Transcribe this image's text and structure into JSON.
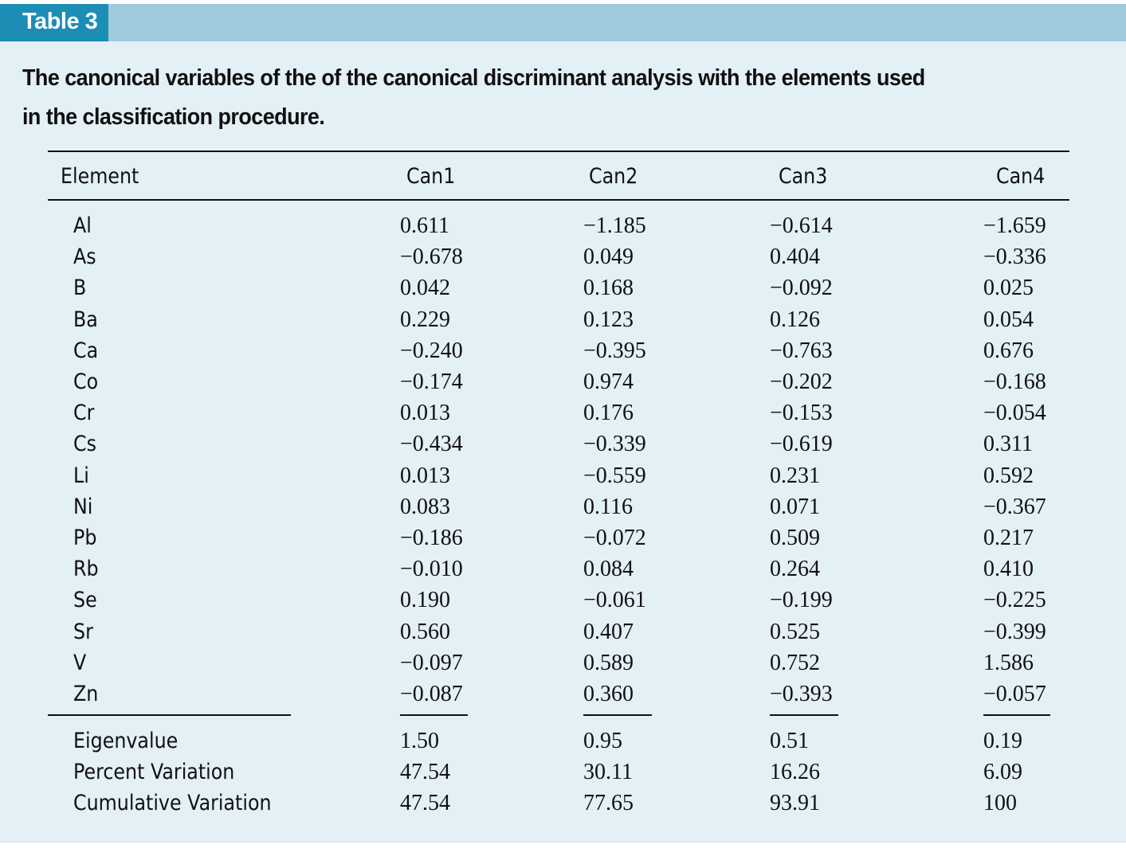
{
  "header": {
    "label": "Table 3"
  },
  "caption": "The canonical variables of the of the canonical discriminant analysis with the elements used in the classification procedure.",
  "table": {
    "columns": [
      "Element",
      "Can1",
      "Can2",
      "Can3",
      "Can4"
    ],
    "rows": [
      [
        "Al",
        "0.611",
        "−1.185",
        "−0.614",
        "−1.659"
      ],
      [
        "As",
        "−0.678",
        "0.049",
        "0.404",
        "−0.336"
      ],
      [
        "B",
        "0.042",
        "0.168",
        "−0.092",
        "0.025"
      ],
      [
        "Ba",
        "0.229",
        "0.123",
        "0.126",
        "0.054"
      ],
      [
        "Ca",
        "−0.240",
        "−0.395",
        "−0.763",
        "0.676"
      ],
      [
        "Co",
        "−0.174",
        "0.974",
        "−0.202",
        "−0.168"
      ],
      [
        "Cr",
        "0.013",
        "0.176",
        "−0.153",
        "−0.054"
      ],
      [
        "Cs",
        "−0.434",
        "−0.339",
        "−0.619",
        "0.311"
      ],
      [
        "Li",
        "0.013",
        "−0.559",
        "0.231",
        "0.592"
      ],
      [
        "Ni",
        "0.083",
        "0.116",
        "0.071",
        "−0.367"
      ],
      [
        "Pb",
        "−0.186",
        "−0.072",
        "0.509",
        "0.217"
      ],
      [
        "Rb",
        "−0.010",
        "0.084",
        "0.264",
        "0.410"
      ],
      [
        "Se",
        "0.190",
        "−0.061",
        "−0.199",
        "−0.225"
      ],
      [
        "Sr",
        "0.560",
        "0.407",
        "0.525",
        "−0.399"
      ],
      [
        "V",
        "−0.097",
        "0.589",
        "0.752",
        "1.586"
      ],
      [
        "Zn",
        "−0.087",
        "0.360",
        "−0.393",
        "−0.057"
      ]
    ],
    "summary": [
      [
        "Eigenvalue",
        "1.50",
        "0.95",
        "0.51",
        "0.19"
      ],
      [
        "Percent Variation",
        "47.54",
        "30.11",
        "16.26",
        "6.09"
      ],
      [
        "Cumulative Variation",
        "47.54",
        "77.65",
        "93.91",
        "100"
      ]
    ]
  }
}
